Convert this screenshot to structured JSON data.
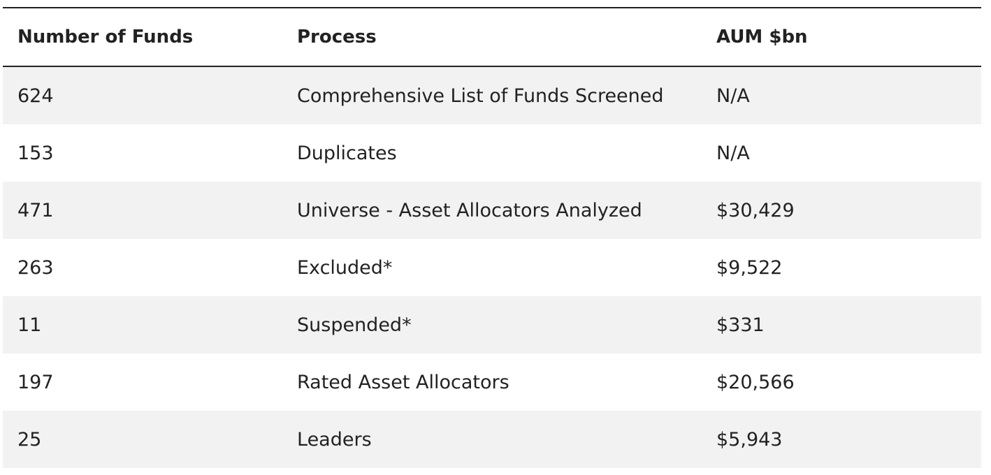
{
  "table": {
    "header": [
      "Number of Funds",
      "Process",
      "AUM $bn"
    ],
    "rows": [
      [
        "624",
        "Comprehensive List of Funds Screened",
        "N/A"
      ],
      [
        "153",
        "Duplicates",
        "N/A"
      ],
      [
        "471",
        "Universe - Asset Allocators Analyzed",
        "$30,429"
      ],
      [
        "263",
        "Excluded*",
        "$9,522"
      ],
      [
        "11",
        "Suspended*",
        "$331"
      ],
      [
        "197",
        "Rated Asset Allocators",
        "$20,566"
      ],
      [
        "25",
        "Leaders",
        "$5,943"
      ]
    ]
  }
}
